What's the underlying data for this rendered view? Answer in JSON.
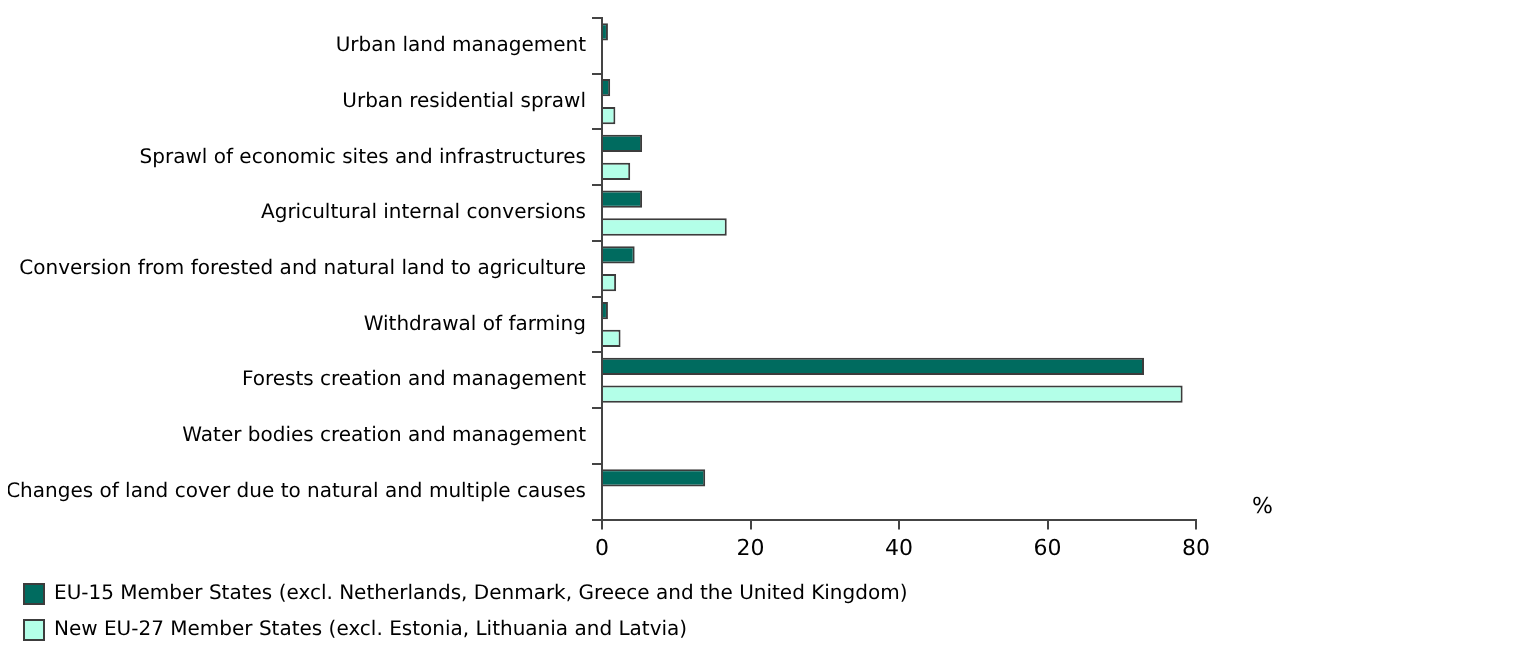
{
  "chart_data": {
    "type": "bar",
    "orientation": "horizontal",
    "xlabel": "%",
    "categories": [
      "Urban land management",
      "Urban residential sprawl",
      "Sprawl of economic sites and infrastructures",
      "Agricultural internal conversions",
      "Conversion from forested and natural land to agriculture",
      "Withdrawal of farming",
      "Forests creation and management",
      "Water bodies creation and management",
      "Changes of land cover due to natural and multiple causes"
    ],
    "series": [
      {
        "name": "EU-15 Member States (excl. Netherlands, Denmark, Greece and the United Kingdom)",
        "color": "#006b5f",
        "values": [
          0.8,
          1.1,
          5.4,
          5.4,
          4.4,
          0.8,
          73.0,
          0,
          13.9
        ]
      },
      {
        "name": "New EU-27 Member States (excl. Estonia, Lithuania and Latvia)",
        "color": "#b3ffe8",
        "values": [
          0,
          1.8,
          3.8,
          16.8,
          1.9,
          2.5,
          78.2,
          0,
          0
        ]
      }
    ],
    "xlim": [
      0,
      80
    ],
    "xticks": [
      0,
      20,
      40,
      60,
      80
    ],
    "grid": false,
    "legend": "bottom"
  }
}
